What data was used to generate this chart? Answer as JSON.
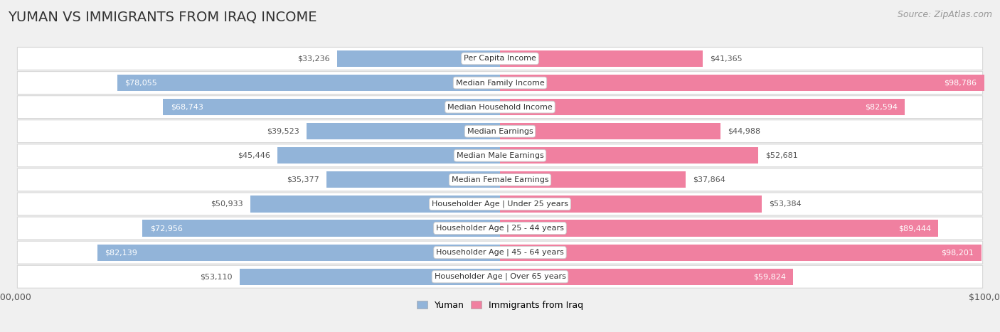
{
  "title": "YUMAN VS IMMIGRANTS FROM IRAQ INCOME",
  "source": "Source: ZipAtlas.com",
  "categories": [
    "Per Capita Income",
    "Median Family Income",
    "Median Household Income",
    "Median Earnings",
    "Median Male Earnings",
    "Median Female Earnings",
    "Householder Age | Under 25 years",
    "Householder Age | 25 - 44 years",
    "Householder Age | 45 - 64 years",
    "Householder Age | Over 65 years"
  ],
  "yuman_values": [
    33236,
    78055,
    68743,
    39523,
    45446,
    35377,
    50933,
    72956,
    82139,
    53110
  ],
  "iraq_values": [
    41365,
    98786,
    82594,
    44988,
    52681,
    37864,
    53384,
    89444,
    98201,
    59824
  ],
  "yuman_color": "#92b4d9",
  "iraq_color": "#f080a0",
  "yuman_label": "Yuman",
  "iraq_label": "Immigrants from Iraq",
  "max_value": 100000,
  "bg_color": "#f0f0f0",
  "row_bg_light": "#f9f9f9",
  "row_bg_white": "#ffffff",
  "title_fontsize": 14,
  "source_fontsize": 9,
  "label_fontsize": 8,
  "value_fontsize": 8,
  "inside_value_threshold": 55000
}
